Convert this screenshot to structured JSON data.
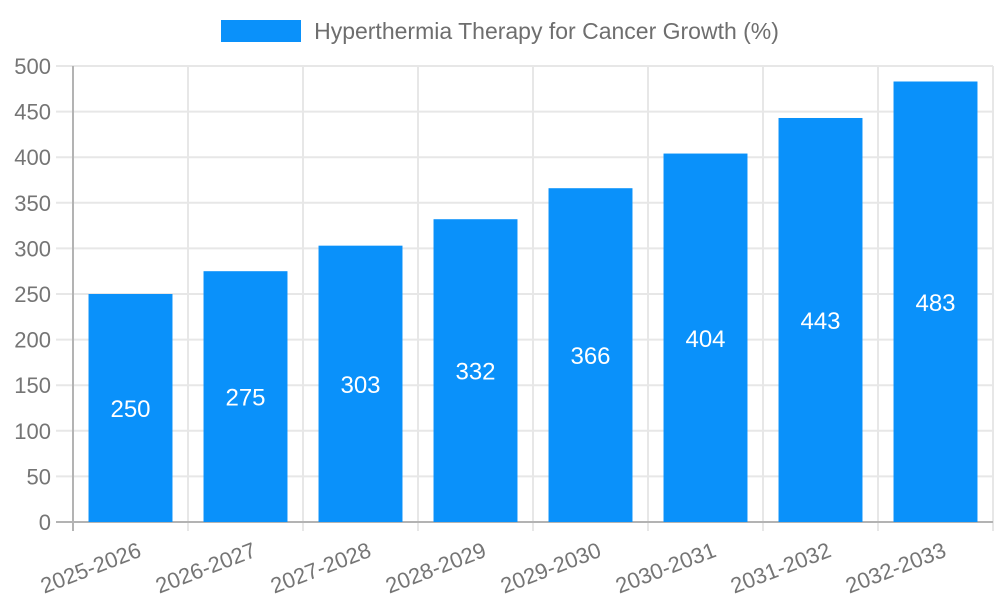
{
  "chart_data": {
    "type": "bar",
    "title": "Hyperthermia Therapy for Cancer Growth (%)",
    "xlabel": "",
    "ylabel": "",
    "categories": [
      "2025-2026",
      "2026-2027",
      "2027-2028",
      "2028-2029",
      "2029-2030",
      "2030-2031",
      "2031-2032",
      "2032-2033"
    ],
    "values": [
      250,
      275,
      303,
      332,
      366,
      404,
      443,
      483
    ],
    "ylim": [
      0,
      500
    ],
    "yticks": [
      0,
      50,
      100,
      150,
      200,
      250,
      300,
      350,
      400,
      450,
      500
    ],
    "grid": true,
    "legend_position": "top-center",
    "x_tick_rotation": -21,
    "colors": {
      "bar": "#0a91fa",
      "grid": "#e7e7e7",
      "axis": "#b3b3b3",
      "tick_label": "#757575",
      "legend_label": "#6e6e6e",
      "value_label": "#ffffff",
      "background": "#ffffff"
    }
  }
}
